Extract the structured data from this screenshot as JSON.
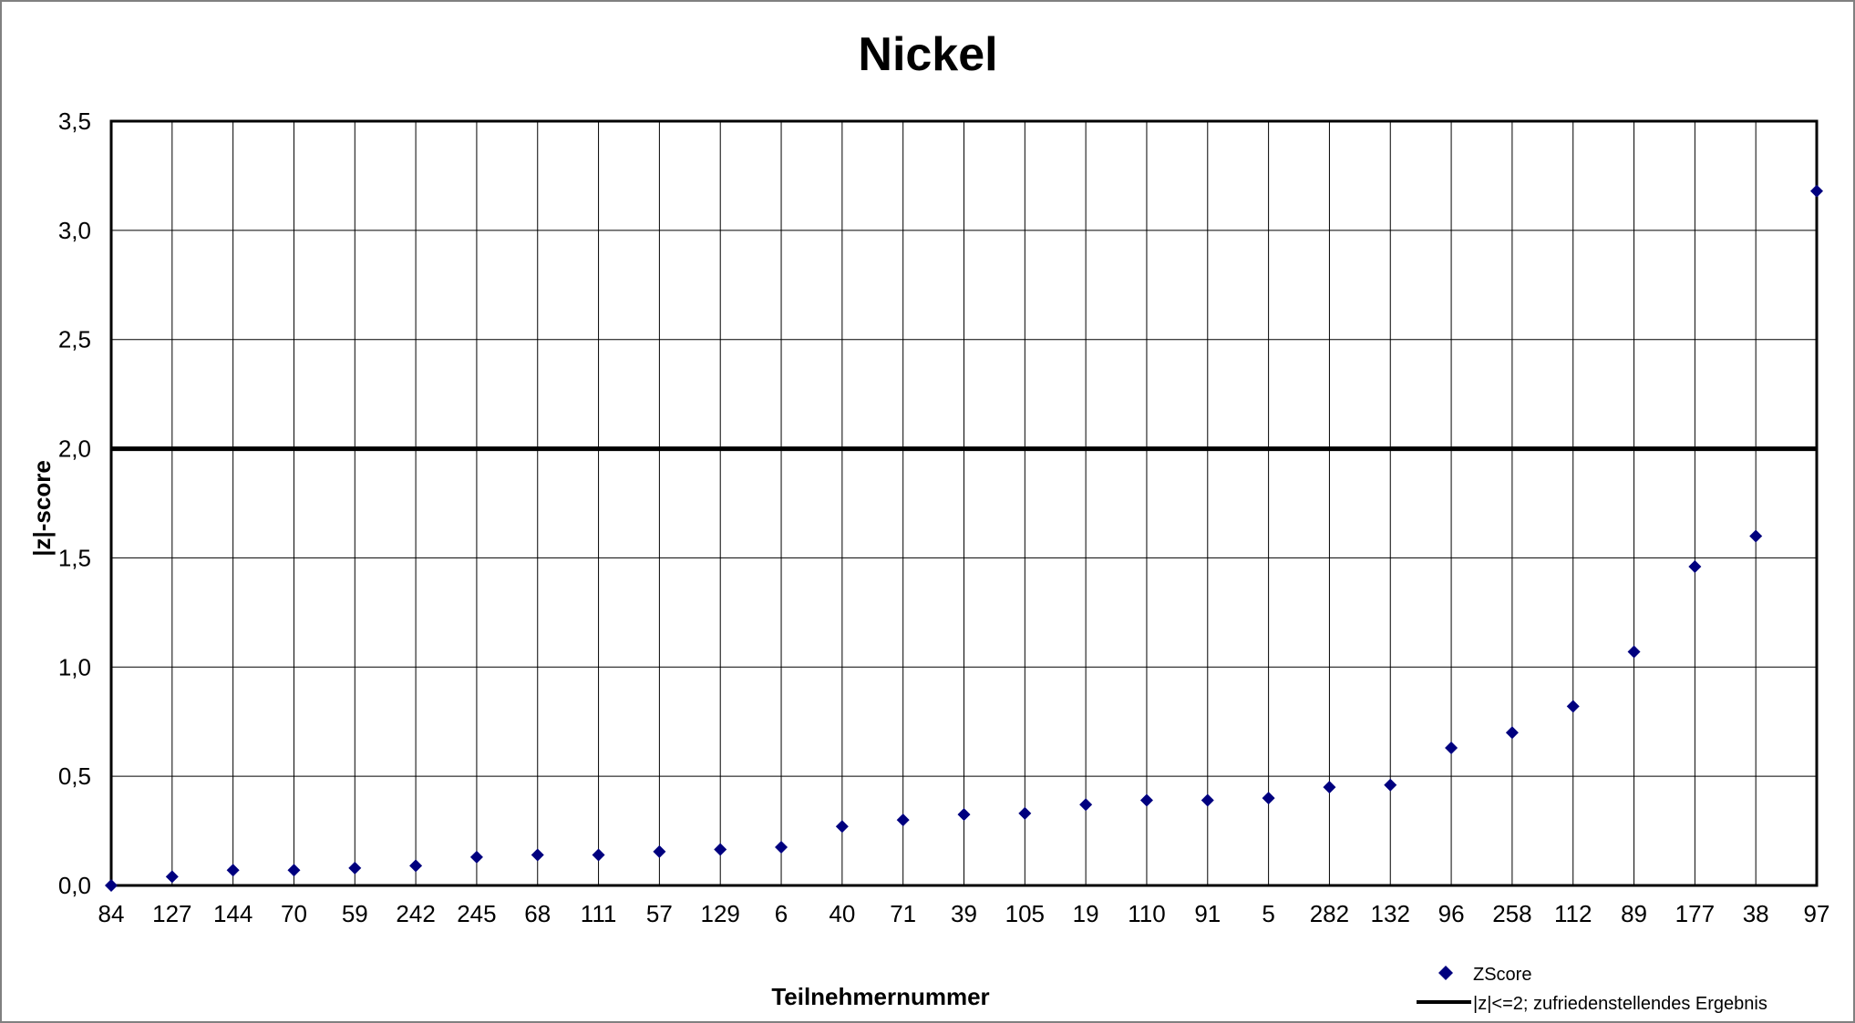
{
  "chart_data": {
    "type": "scatter",
    "title": "Nickel",
    "xlabel": "Teilnehmernummer",
    "ylabel": "|z|-score",
    "ylim": [
      0,
      3.5
    ],
    "yticks": [
      "0,0",
      "0,5",
      "1,0",
      "1,5",
      "2,0",
      "2,5",
      "3,0",
      "3,5"
    ],
    "grid": true,
    "legend_position": "bottom-right",
    "categories": [
      "84",
      "127",
      "144",
      "70",
      "59",
      "242",
      "245",
      "68",
      "111",
      "57",
      "129",
      "6",
      "40",
      "71",
      "39",
      "105",
      "19",
      "110",
      "91",
      "5",
      "282",
      "132",
      "96",
      "258",
      "112",
      "89",
      "177",
      "38",
      "97"
    ],
    "series": [
      {
        "name": "ZScore",
        "marker": "diamond",
        "color": "#00007F",
        "values": [
          0.0,
          0.04,
          0.07,
          0.07,
          0.08,
          0.09,
          0.13,
          0.14,
          0.14,
          0.155,
          0.165,
          0.175,
          0.27,
          0.3,
          0.325,
          0.33,
          0.37,
          0.39,
          0.39,
          0.4,
          0.45,
          0.46,
          0.63,
          0.7,
          0.82,
          1.07,
          1.46,
          1.6,
          3.18
        ]
      }
    ],
    "reference_line": {
      "name": "|z|<=2; zufriedenstellendes Ergebnis",
      "y": 2.0,
      "color": "#000000"
    }
  }
}
